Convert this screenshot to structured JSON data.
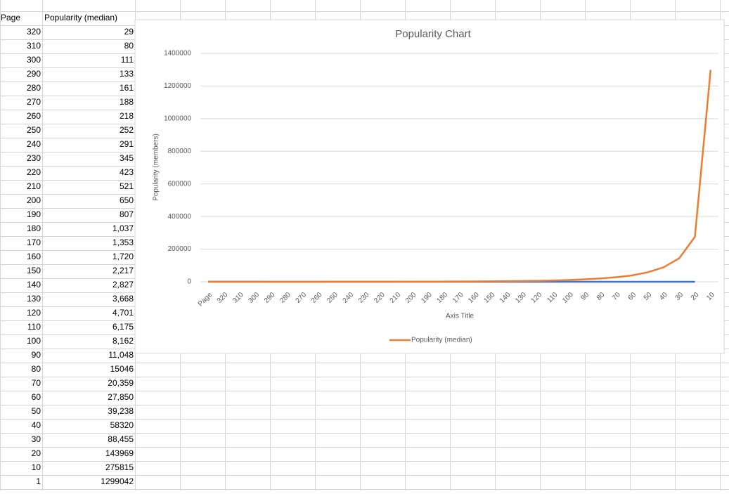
{
  "table": {
    "header": [
      "Page",
      "Popularity (median)"
    ],
    "rows": [
      [
        "320",
        "29"
      ],
      [
        "310",
        "80"
      ],
      [
        "300",
        "111"
      ],
      [
        "290",
        "133"
      ],
      [
        "280",
        "161"
      ],
      [
        "270",
        "188"
      ],
      [
        "260",
        "218"
      ],
      [
        "250",
        "252"
      ],
      [
        "240",
        "291"
      ],
      [
        "230",
        "345"
      ],
      [
        "220",
        "423"
      ],
      [
        "210",
        "521"
      ],
      [
        "200",
        "650"
      ],
      [
        "190",
        "807"
      ],
      [
        "180",
        "1,037"
      ],
      [
        "170",
        "1,353"
      ],
      [
        "160",
        "1,720"
      ],
      [
        "150",
        "2,217"
      ],
      [
        "140",
        "2,827"
      ],
      [
        "130",
        "3,668"
      ],
      [
        "120",
        "4,701"
      ],
      [
        "110",
        "6,175"
      ],
      [
        "100",
        "8,162"
      ],
      [
        "90",
        "11,048"
      ],
      [
        "80",
        "15046"
      ],
      [
        "70",
        "20,359"
      ],
      [
        "60",
        "27,850"
      ],
      [
        "50",
        "39,238"
      ],
      [
        "40",
        "58320"
      ],
      [
        "30",
        "88,455"
      ],
      [
        "20",
        "143969"
      ],
      [
        "10",
        "275815"
      ],
      [
        "1",
        "1299042"
      ]
    ]
  },
  "chart_data": {
    "type": "line",
    "title": "Popularity Chart",
    "x_label": "Axis Title",
    "y_label": "Popularity (members)",
    "categories": [
      "Page",
      "320",
      "310",
      "300",
      "290",
      "280",
      "270",
      "260",
      "250",
      "240",
      "230",
      "220",
      "210",
      "200",
      "190",
      "180",
      "170",
      "160",
      "150",
      "140",
      "130",
      "120",
      "110",
      "100",
      "90",
      "80",
      "70",
      "60",
      "50",
      "40",
      "30",
      "20",
      "10"
    ],
    "series": [
      {
        "color": "#4472c4",
        "values": [
          320,
          310,
          300,
          290,
          280,
          270,
          260,
          250,
          240,
          230,
          220,
          210,
          200,
          190,
          180,
          170,
          160,
          150,
          140,
          130,
          120,
          110,
          100,
          90,
          80,
          70,
          60,
          50,
          40,
          30,
          20,
          10,
          null
        ]
      },
      {
        "name": "Popularity (median)",
        "color": "#ed7d31",
        "values": [
          29,
          80,
          111,
          133,
          161,
          188,
          218,
          252,
          291,
          345,
          423,
          521,
          650,
          807,
          1037,
          1353,
          1720,
          2217,
          2827,
          3668,
          4701,
          6175,
          8162,
          11048,
          15046,
          20359,
          27850,
          39238,
          58320,
          88455,
          143969,
          275815,
          1299042
        ]
      }
    ],
    "ylim": [
      0,
      1400000
    ],
    "yticks": [
      0,
      200000,
      400000,
      600000,
      800000,
      1000000,
      1200000,
      1400000
    ],
    "grid": true,
    "legend": "bottom"
  }
}
